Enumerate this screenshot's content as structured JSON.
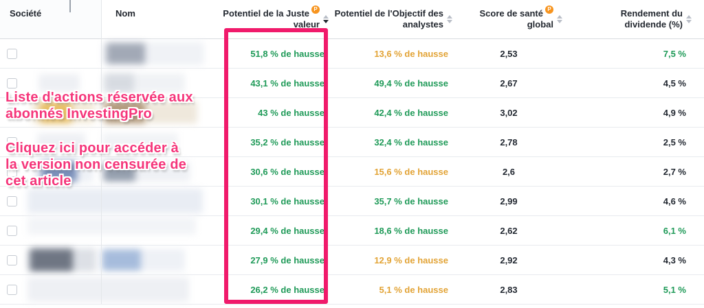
{
  "header": {
    "pro_badge_letter": "P",
    "columns": [
      {
        "label": "Société"
      },
      {
        "label": "Nom"
      },
      {
        "line1": "Potentiel de la Juste",
        "line2": "valeur",
        "pro": true,
        "sort": "desc"
      },
      {
        "line1": "Potentiel de l'Objectif des",
        "line2": "analystes",
        "pro": false,
        "sort": "none"
      },
      {
        "line1": "Score de santé",
        "line2": "global",
        "pro": true,
        "sort": "none"
      },
      {
        "line1": "Rendement du",
        "line2": "dividende (%)",
        "pro": false,
        "sort": "none"
      }
    ]
  },
  "rows": [
    {
      "fair_value": "51,8 % de hausse",
      "fair_value_color": "green",
      "analyst_target": "13,6 % de hausse",
      "analyst_target_color": "orange",
      "health_score": "2,53",
      "dividend_yield": "7,5 %",
      "dividend_yield_color": "green"
    },
    {
      "fair_value": "43,1 % de hausse",
      "fair_value_color": "green",
      "analyst_target": "49,4 % de hausse",
      "analyst_target_color": "green",
      "health_score": "2,67",
      "dividend_yield": "4,5 %",
      "dividend_yield_color": "dark"
    },
    {
      "fair_value": "43 % de hausse",
      "fair_value_color": "green",
      "analyst_target": "42,4 % de hausse",
      "analyst_target_color": "green",
      "health_score": "3,02",
      "dividend_yield": "4,9 %",
      "dividend_yield_color": "dark"
    },
    {
      "fair_value": "35,2 % de hausse",
      "fair_value_color": "green",
      "analyst_target": "32,4 % de hausse",
      "analyst_target_color": "green",
      "health_score": "2,78",
      "dividend_yield": "2,5 %",
      "dividend_yield_color": "dark"
    },
    {
      "fair_value": "30,6 % de hausse",
      "fair_value_color": "green",
      "analyst_target": "15,6 % de hausse",
      "analyst_target_color": "orange",
      "health_score": "2,6",
      "dividend_yield": "2,7 %",
      "dividend_yield_color": "dark"
    },
    {
      "fair_value": "30,1 % de hausse",
      "fair_value_color": "green",
      "analyst_target": "35,7 % de hausse",
      "analyst_target_color": "green",
      "health_score": "2,99",
      "dividend_yield": "4,6 %",
      "dividend_yield_color": "dark"
    },
    {
      "fair_value": "29,4 % de hausse",
      "fair_value_color": "green",
      "analyst_target": "18,6 % de hausse",
      "analyst_target_color": "green",
      "health_score": "2,62",
      "dividend_yield": "6,1 %",
      "dividend_yield_color": "green"
    },
    {
      "fair_value": "27,9 % de hausse",
      "fair_value_color": "green",
      "analyst_target": "12,9 % de hausse",
      "analyst_target_color": "orange",
      "health_score": "2,92",
      "dividend_yield": "4,3 %",
      "dividend_yield_color": "dark"
    },
    {
      "fair_value": "26,2 % de hausse",
      "fair_value_color": "green",
      "analyst_target": "5,1 % de hausse",
      "analyst_target_color": "orange",
      "health_score": "2,83",
      "dividend_yield": "5,1 %",
      "dividend_yield_color": "green"
    }
  ],
  "overlay": {
    "notice_line1": "Liste d'actions réservée aux",
    "notice_line2": "abonnés InvestingPro",
    "link_line1": "Cliquez ici pour accéder à",
    "link_line2": "la version non censurée de",
    "link_line3": "cet article"
  },
  "colors": {
    "positive_green": "#1f9a58",
    "warning_orange": "#e2a335",
    "neutral_dark": "#222831",
    "highlight_pink": "#f01a6b",
    "pro_badge_orange": "#f7941e"
  }
}
